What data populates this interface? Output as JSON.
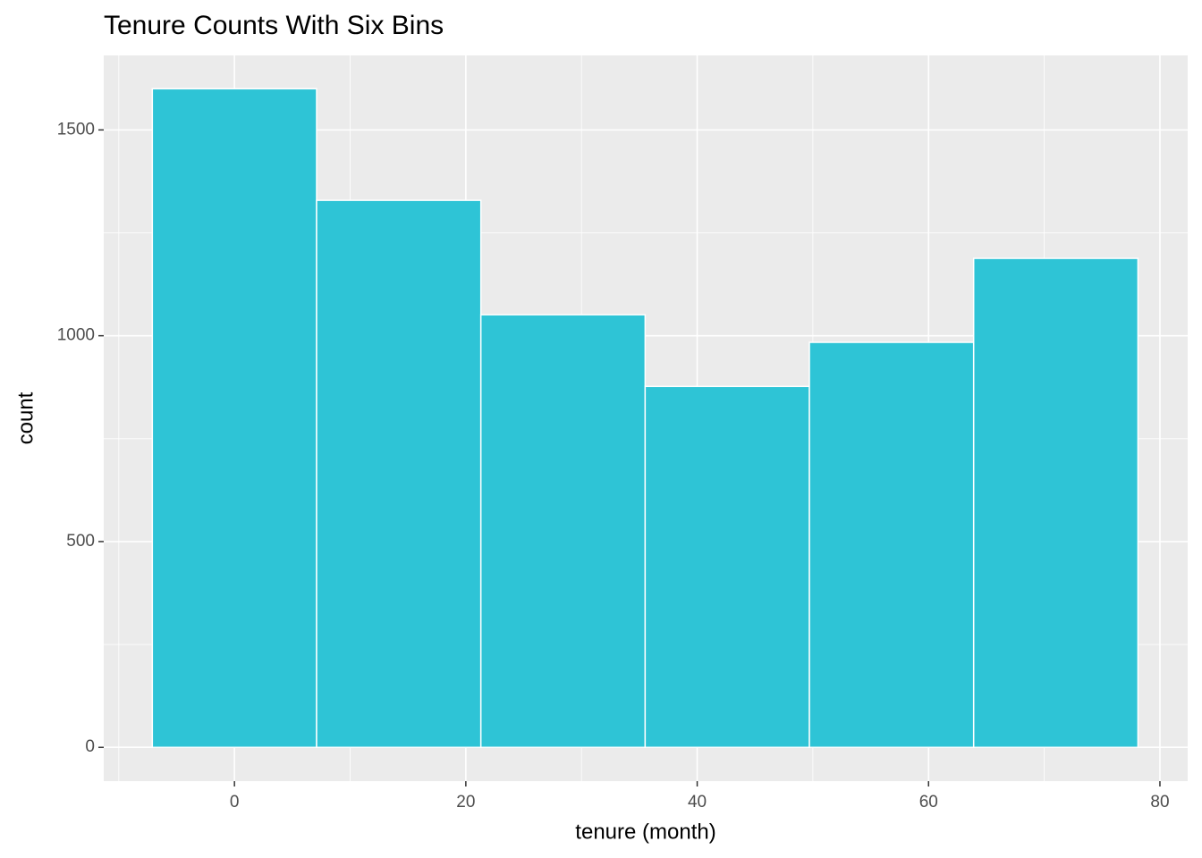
{
  "chart_data": {
    "type": "histogram",
    "title": "Tenure Counts With Six Bins",
    "x_label": "tenure (month)",
    "y_label": "count",
    "bins": [
      -7.1,
      7.1,
      21.3,
      35.5,
      49.7,
      63.9,
      78.1
    ],
    "values": [
      1600,
      1329,
      1051,
      877,
      984,
      1188
    ],
    "color": "#2ec4d6",
    "edge_color": "#ffffff",
    "xlim": [
      -11.3,
      82.4
    ],
    "xticks": [
      0,
      20,
      40,
      60,
      80
    ],
    "ylim": [
      -82,
      1681
    ],
    "yticks": [
      0,
      500,
      1000,
      1500
    ],
    "x_minor_grid": [
      -10,
      10,
      30,
      50,
      70
    ],
    "y_minor_grid": [
      250,
      750,
      1250
    ],
    "grid": true
  }
}
